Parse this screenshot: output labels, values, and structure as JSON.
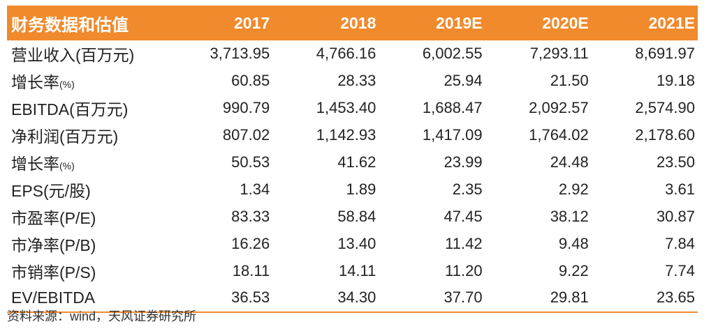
{
  "table": {
    "header": [
      "财务数据和估值",
      "2017",
      "2018",
      "2019E",
      "2020E",
      "2021E"
    ],
    "rows": [
      {
        "label": "营业收入(百万元)",
        "label_main": "营业收入(百万元)",
        "label_small": "",
        "values": [
          "3,713.95",
          "4,766.16",
          "6,002.55",
          "7,293.11",
          "8,691.97"
        ]
      },
      {
        "label": "增长率(%)",
        "label_main": "增长率",
        "label_small": "(%)",
        "values": [
          "60.85",
          "28.33",
          "25.94",
          "21.50",
          "19.18"
        ]
      },
      {
        "label": "EBITDA(百万元)",
        "label_main": "EBITDA(百万元)",
        "label_small": "",
        "values": [
          "990.79",
          "1,453.40",
          "1,688.47",
          "2,092.57",
          "2,574.90"
        ]
      },
      {
        "label": "净利润(百万元)",
        "label_main": "净利润(百万元)",
        "label_small": "",
        "values": [
          "807.02",
          "1,142.93",
          "1,417.09",
          "1,764.02",
          "2,178.60"
        ]
      },
      {
        "label": "增长率(%)",
        "label_main": "增长率",
        "label_small": "(%)",
        "values": [
          "50.53",
          "41.62",
          "23.99",
          "24.48",
          "23.50"
        ]
      },
      {
        "label": "EPS(元/股)",
        "label_main": "EPS(元/股)",
        "label_small": "",
        "values": [
          "1.34",
          "1.89",
          "2.35",
          "2.92",
          "3.61"
        ]
      },
      {
        "label": "市盈率(P/E)",
        "label_main": "市盈率(P/E)",
        "label_small": "",
        "values": [
          "83.33",
          "58.84",
          "47.45",
          "38.12",
          "30.87"
        ]
      },
      {
        "label": "市净率(P/B)",
        "label_main": "市净率(P/B)",
        "label_small": "",
        "values": [
          "16.26",
          "13.40",
          "11.42",
          "9.48",
          "7.84"
        ]
      },
      {
        "label": "市销率(P/S)",
        "label_main": "市销率(P/S)",
        "label_small": "",
        "values": [
          "18.11",
          "14.11",
          "11.20",
          "9.22",
          "7.74"
        ]
      },
      {
        "label": "EV/EBITDA",
        "label_main": "EV/EBITDA",
        "label_small": "",
        "values": [
          "36.53",
          "34.30",
          "37.70",
          "29.81",
          "23.65"
        ]
      }
    ]
  },
  "source": "资料来源：wind，天风证券研究所",
  "colors": {
    "header_bg": "#f08a2c",
    "header_text": "#ffffff",
    "bottom_rule": "#f08a2c"
  }
}
